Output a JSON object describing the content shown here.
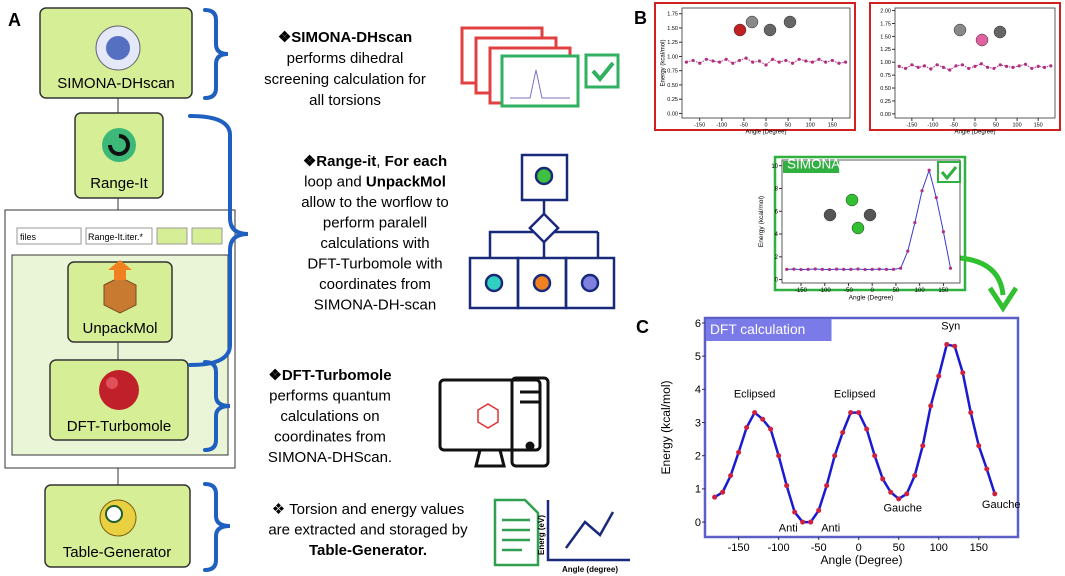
{
  "panel_labels": [
    "A",
    "B",
    "C"
  ],
  "workflow": {
    "nodes": [
      "SIMONA-DHscan",
      "Range-It",
      "UnpackMol",
      "DFT-Turbomole",
      "Table-Generator"
    ],
    "inputs": [
      "files",
      "Range-It.iter.*"
    ],
    "descriptions": [
      [
        [
          {
            "text": "❖SIMONA-DHscan",
            "bold": true
          }
        ],
        [
          {
            "text": "performs dihedral"
          }
        ],
        [
          {
            "text": "screening calculation for"
          }
        ],
        [
          {
            "text": "all torsions"
          }
        ]
      ],
      [
        [
          {
            "text": "❖Range-it",
            "bold": true
          },
          {
            "text": ", "
          },
          {
            "text": "For each",
            "bold": true
          }
        ],
        [
          {
            "text": "loop and "
          },
          {
            "text": "UnpackMol",
            "bold": true
          }
        ],
        [
          {
            "text": "allow to the worflow to"
          }
        ],
        [
          {
            "text": "perform paralell"
          }
        ],
        [
          {
            "text": "calculations with"
          }
        ],
        [
          {
            "text": "DFT-Turbomole with"
          }
        ],
        [
          {
            "text": "coordinates from"
          }
        ],
        [
          {
            "text": "SIMONA-DH-scan"
          }
        ]
      ],
      [
        [
          {
            "text": "❖DFT-Turbomole",
            "bold": true
          }
        ],
        [
          {
            "text": "performs quantum"
          }
        ],
        [
          {
            "text": "calculations on"
          }
        ],
        [
          {
            "text": "coordinates from"
          }
        ],
        [
          {
            "text": "SIMONA-DHScan."
          }
        ]
      ],
      [
        [
          {
            "text": "❖ Torsion and energy values"
          }
        ],
        [
          {
            "text": "are extracted and storaged by"
          }
        ],
        [
          {
            "text": "Table-Generator.",
            "bold": true
          }
        ]
      ]
    ],
    "icon_texts": [
      "Energ (eV)",
      "Angle (degree)"
    ]
  },
  "chart_data": [
    {
      "type": "line",
      "xlabel": "Angle (Degree)",
      "ylabel": "Energy (kcal/mol)",
      "x": [
        -180,
        -165,
        -150,
        -135,
        -120,
        -105,
        -90,
        -75,
        -60,
        -45,
        -30,
        -15,
        0,
        15,
        30,
        45,
        60,
        75,
        90,
        105,
        120,
        135,
        150,
        165,
        180
      ],
      "series": [
        {
          "color": "#b03080",
          "marker_color": "#b03080",
          "values": [
            0.9,
            0.93,
            0.88,
            0.95,
            0.92,
            0.9,
            0.95,
            0.88,
            0.93,
            0.97,
            0.9,
            0.92,
            0.85,
            0.95,
            0.9,
            0.93,
            0.88,
            0.95,
            0.92,
            0.9,
            0.95,
            0.9,
            0.93,
            0.88,
            0.9
          ]
        }
      ],
      "xlim": [
        -190,
        190
      ],
      "ylim": [
        -0.08,
        1.85
      ],
      "xticks": [
        -150,
        -100,
        -50,
        0,
        50,
        100,
        150
      ],
      "yticks": [
        {
          "value": 0,
          "label": "0.00"
        },
        {
          "value": 0.25,
          "label": "0.25"
        },
        {
          "value": 0.5,
          "label": "0.50"
        },
        {
          "value": 0.75,
          "label": "0.75"
        },
        {
          "value": 1,
          "label": "1.00"
        },
        {
          "value": 1.25,
          "label": "1.25"
        },
        {
          "value": 1.5,
          "label": "1.50"
        },
        {
          "value": 1.75,
          "label": "1.75"
        }
      ]
    },
    {
      "type": "line",
      "xlabel": "Angle (Degree)",
      "x": [
        -180,
        -165,
        -150,
        -135,
        -120,
        -105,
        -90,
        -75,
        -60,
        -45,
        -30,
        -15,
        0,
        15,
        30,
        45,
        60,
        75,
        90,
        105,
        120,
        135,
        150,
        165,
        180
      ],
      "series": [
        {
          "color": "#b03080",
          "marker_color": "#b03080",
          "values": [
            0.92,
            0.88,
            0.95,
            0.9,
            0.93,
            0.87,
            0.95,
            0.9,
            0.85,
            0.93,
            0.95,
            0.88,
            0.92,
            0.97,
            0.9,
            0.88,
            0.95,
            0.92,
            0.9,
            0.93,
            0.96,
            0.88,
            0.92,
            0.9,
            0.93
          ]
        }
      ],
      "xlim": [
        -190,
        190
      ],
      "ylim": [
        -0.08,
        2.05
      ],
      "xticks": [
        -150,
        -100,
        -50,
        0,
        50,
        100,
        150
      ],
      "yticks": [
        {
          "value": 0,
          "label": "0.00"
        },
        {
          "value": 0.25,
          "label": "0.25"
        },
        {
          "value": 0.5,
          "label": "0.50"
        },
        {
          "value": 0.75,
          "label": "0.75"
        },
        {
          "value": 1,
          "label": "1.00"
        },
        {
          "value": 1.25,
          "label": "1.25"
        },
        {
          "value": 1.5,
          "label": "1.50"
        },
        {
          "value": 1.75,
          "label": "1.75"
        },
        {
          "value": 2,
          "label": "2.00"
        }
      ]
    },
    {
      "type": "line",
      "title": "SIMONA scan",
      "xlabel": "Angle (Degree)",
      "ylabel": "Energy (kcal/mol)",
      "x": [
        -180,
        -165,
        -150,
        -135,
        -120,
        -105,
        -90,
        -75,
        -60,
        -45,
        -30,
        -15,
        0,
        15,
        30,
        45,
        60,
        75,
        90,
        105,
        120,
        135,
        150,
        165
      ],
      "series": [
        {
          "color": "#3a3ad0",
          "marker_color": "#b03080",
          "values": [
            0.9,
            0.92,
            0.88,
            0.9,
            0.93,
            0.9,
            0.88,
            0.92,
            0.9,
            0.9,
            0.93,
            0.88,
            0.9,
            0.92,
            0.9,
            0.9,
            1.0,
            2.5,
            5,
            7.8,
            9.6,
            7.2,
            4.2,
            1.0
          ]
        }
      ],
      "xlim": [
        -190,
        185
      ],
      "ylim": [
        -0.3,
        10.5
      ],
      "xticks": [
        -150,
        -100,
        -50,
        0,
        50,
        100,
        150
      ],
      "yticks": [
        0,
        2,
        4,
        6,
        8,
        10
      ]
    },
    {
      "type": "line",
      "title": "DFT calculation",
      "xlabel": "Angle (Degree)",
      "ylabel": "Energy (kcal/mol)",
      "x": [
        -180,
        -170,
        -160,
        -150,
        -140,
        -130,
        -120,
        -110,
        -100,
        -90,
        -80,
        -70,
        -60,
        -50,
        -40,
        -30,
        -20,
        -10,
        0,
        10,
        20,
        30,
        40,
        50,
        60,
        70,
        80,
        90,
        100,
        110,
        120,
        130,
        140,
        150,
        160,
        170
      ],
      "series": [
        {
          "color": "#1a1ad0",
          "marker_color": "#d02040",
          "values": [
            0.75,
            0.9,
            1.4,
            2.1,
            2.85,
            3.3,
            3.1,
            2.8,
            2.0,
            1.1,
            0.3,
            0.0,
            0.0,
            0.35,
            1.1,
            2.0,
            2.7,
            3.3,
            3.3,
            2.8,
            2.0,
            1.3,
            0.9,
            0.7,
            0.85,
            1.4,
            2.3,
            3.5,
            4.4,
            5.35,
            5.3,
            4.5,
            3.3,
            2.3,
            1.6,
            0.85
          ]
        }
      ],
      "annotations": [
        "Eclipsed",
        "Anti",
        "Anti",
        "Eclipsed",
        "Gauche",
        "Syn",
        "Gauche"
      ],
      "xlim": [
        -192,
        199
      ],
      "ylim": [
        -0.45,
        6.15
      ],
      "xticks": [
        -150,
        -100,
        -50,
        0,
        50,
        100,
        150
      ],
      "yticks": [
        0,
        1,
        2,
        3,
        4,
        5,
        6
      ]
    }
  ]
}
